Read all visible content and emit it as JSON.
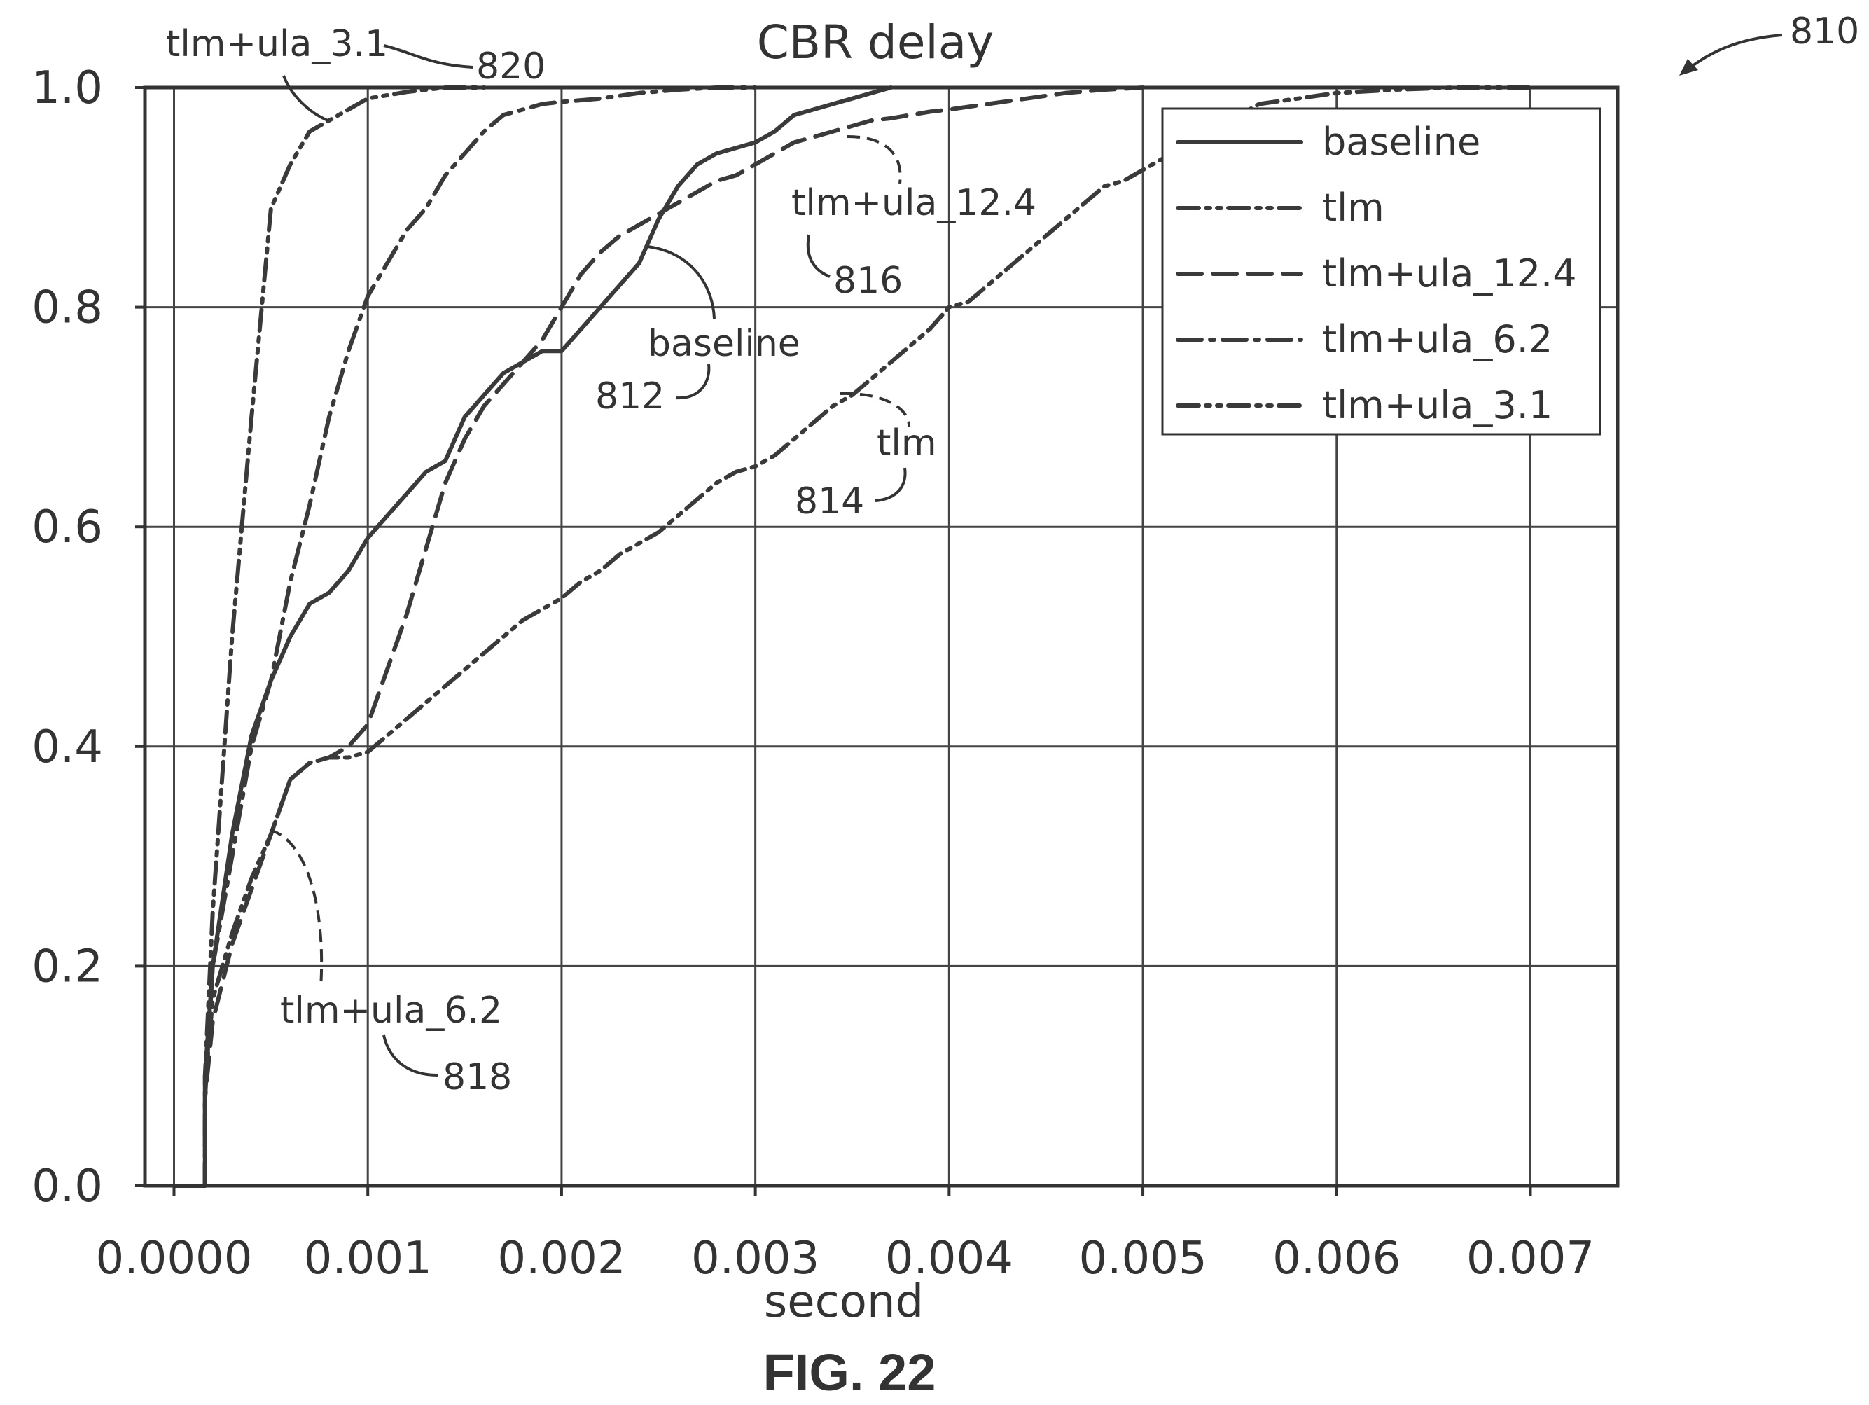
{
  "figure": {
    "ref_number": "810",
    "caption": "FIG. 22"
  },
  "chart_data": {
    "type": "line",
    "title": "CBR delay",
    "xlabel": "second",
    "ylabel": "",
    "xlim": [
      -0.00015,
      0.00745
    ],
    "ylim": [
      0.0,
      1.0
    ],
    "xticks": [
      0.0,
      0.001,
      0.002,
      0.003,
      0.004,
      0.005,
      0.006,
      0.007
    ],
    "xtick_labels": [
      "0.0000",
      "0.001",
      "0.002",
      "0.003",
      "0.004",
      "0.005",
      "0.006",
      "0.007"
    ],
    "yticks": [
      0.0,
      0.2,
      0.4,
      0.6,
      0.8,
      1.0
    ],
    "ytick_labels": [
      "0.0",
      "0.2",
      "0.4",
      "0.6",
      "0.8",
      "1.0"
    ],
    "grid": true,
    "legend_position": "top-right",
    "series": [
      {
        "name": "baseline",
        "dash": "solid",
        "annotation": {
          "label": "baseline",
          "ref": "812"
        },
        "x": [
          0.0,
          0.00016,
          0.00016,
          0.0002,
          0.0003,
          0.0004,
          0.0005,
          0.0006,
          0.0007,
          0.0008,
          0.0009,
          0.001,
          0.0011,
          0.0012,
          0.0013,
          0.0014,
          0.0015,
          0.0016,
          0.0017,
          0.0018,
          0.0019,
          0.002,
          0.0021,
          0.0022,
          0.0023,
          0.0024,
          0.0025,
          0.0026,
          0.0027,
          0.0028,
          0.0029,
          0.003,
          0.0031,
          0.0032,
          0.0033,
          0.0034,
          0.0035,
          0.0036,
          0.0037
        ],
        "y": [
          0.0,
          0.0,
          0.1,
          0.2,
          0.32,
          0.41,
          0.46,
          0.5,
          0.53,
          0.54,
          0.56,
          0.59,
          0.61,
          0.63,
          0.65,
          0.66,
          0.7,
          0.72,
          0.74,
          0.75,
          0.76,
          0.76,
          0.78,
          0.8,
          0.82,
          0.84,
          0.88,
          0.91,
          0.93,
          0.94,
          0.945,
          0.95,
          0.96,
          0.975,
          0.98,
          0.985,
          0.99,
          0.995,
          1.0
        ]
      },
      {
        "name": "tlm",
        "dash": "dash-dot-dot",
        "annotation": {
          "label": "tlm",
          "ref": "814"
        },
        "x": [
          0.00016,
          0.00016,
          0.0002,
          0.0003,
          0.0004,
          0.0005,
          0.0006,
          0.0007,
          0.0008,
          0.0009,
          0.001,
          0.0011,
          0.0012,
          0.0013,
          0.0014,
          0.0015,
          0.0016,
          0.0017,
          0.0018,
          0.0019,
          0.002,
          0.0021,
          0.0022,
          0.0023,
          0.0024,
          0.0025,
          0.0026,
          0.0027,
          0.0028,
          0.0029,
          0.003,
          0.0031,
          0.0032,
          0.0033,
          0.0034,
          0.0035,
          0.0036,
          0.0037,
          0.0038,
          0.0039,
          0.004,
          0.0041,
          0.0042,
          0.0043,
          0.0044,
          0.0045,
          0.0046,
          0.0047,
          0.0048,
          0.0049,
          0.005,
          0.0051,
          0.0052,
          0.0053,
          0.0054,
          0.0055,
          0.0056,
          0.0058,
          0.006,
          0.0063,
          0.0066,
          0.007
        ],
        "y": [
          0.0,
          0.09,
          0.17,
          0.23,
          0.28,
          0.32,
          0.37,
          0.385,
          0.39,
          0.39,
          0.395,
          0.41,
          0.425,
          0.44,
          0.455,
          0.47,
          0.485,
          0.5,
          0.515,
          0.525,
          0.535,
          0.55,
          0.56,
          0.575,
          0.585,
          0.595,
          0.61,
          0.625,
          0.64,
          0.65,
          0.655,
          0.665,
          0.68,
          0.695,
          0.71,
          0.72,
          0.735,
          0.75,
          0.765,
          0.78,
          0.8,
          0.805,
          0.82,
          0.835,
          0.85,
          0.865,
          0.88,
          0.895,
          0.91,
          0.915,
          0.925,
          0.935,
          0.945,
          0.955,
          0.965,
          0.975,
          0.985,
          0.99,
          0.995,
          0.998,
          1.0,
          1.0
        ]
      },
      {
        "name": "tlm+ula_12.4",
        "dash": "dash",
        "annotation": {
          "label": "tlm+ula_12.4",
          "ref": "816"
        },
        "x": [
          0.00016,
          0.00016,
          0.0002,
          0.0003,
          0.0004,
          0.0005,
          0.0006,
          0.0007,
          0.0008,
          0.0009,
          0.001,
          0.0011,
          0.0012,
          0.0013,
          0.0014,
          0.0015,
          0.0016,
          0.0017,
          0.0018,
          0.0019,
          0.002,
          0.0021,
          0.0022,
          0.0023,
          0.0024,
          0.0025,
          0.0026,
          0.0027,
          0.0028,
          0.0029,
          0.003,
          0.0031,
          0.0032,
          0.0033,
          0.0034,
          0.0035,
          0.0036,
          0.0037,
          0.0038,
          0.0039,
          0.004,
          0.0042,
          0.0044,
          0.0046,
          0.0048,
          0.005
        ],
        "y": [
          0.0,
          0.08,
          0.15,
          0.22,
          0.27,
          0.32,
          0.37,
          0.385,
          0.39,
          0.4,
          0.42,
          0.47,
          0.52,
          0.58,
          0.64,
          0.68,
          0.71,
          0.73,
          0.75,
          0.77,
          0.8,
          0.83,
          0.85,
          0.865,
          0.875,
          0.885,
          0.895,
          0.905,
          0.915,
          0.92,
          0.93,
          0.94,
          0.95,
          0.955,
          0.96,
          0.965,
          0.97,
          0.972,
          0.975,
          0.978,
          0.98,
          0.985,
          0.99,
          0.995,
          0.998,
          1.0
        ]
      },
      {
        "name": "tlm+ula_6.2",
        "dash": "dash-dot",
        "annotation": {
          "label": "tlm+ula_6.2",
          "ref": "818"
        },
        "x": [
          0.00016,
          0.00016,
          0.0002,
          0.0003,
          0.0004,
          0.0005,
          0.0006,
          0.0007,
          0.0008,
          0.0009,
          0.001,
          0.0011,
          0.0012,
          0.0013,
          0.0014,
          0.0015,
          0.0016,
          0.0017,
          0.0018,
          0.0019,
          0.002,
          0.0022,
          0.0024,
          0.0026,
          0.0028,
          0.003
        ],
        "y": [
          0.0,
          0.08,
          0.2,
          0.3,
          0.4,
          0.46,
          0.55,
          0.62,
          0.7,
          0.76,
          0.81,
          0.84,
          0.87,
          0.89,
          0.92,
          0.94,
          0.96,
          0.975,
          0.98,
          0.985,
          0.987,
          0.99,
          0.995,
          0.998,
          1.0,
          1.0
        ]
      },
      {
        "name": "tlm+ula_3.1",
        "dash": "dash-dot-dot",
        "annotation": {
          "label": "tlm+ula_3.1",
          "ref": "820"
        },
        "x": [
          0.00016,
          0.00016,
          0.0002,
          0.0003,
          0.0004,
          0.0005,
          0.0006,
          0.0007,
          0.0008,
          0.0009,
          0.001,
          0.0011,
          0.0012,
          0.0013,
          0.0014,
          0.0016
        ],
        "y": [
          0.0,
          0.1,
          0.25,
          0.5,
          0.7,
          0.89,
          0.93,
          0.96,
          0.97,
          0.98,
          0.99,
          0.993,
          0.996,
          0.998,
          1.0,
          1.0
        ]
      }
    ]
  }
}
